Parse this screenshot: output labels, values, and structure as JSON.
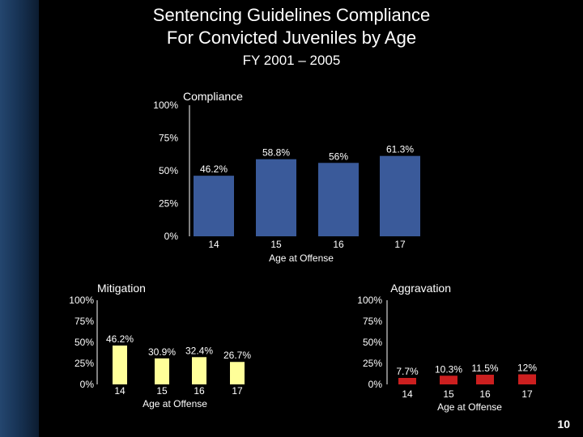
{
  "slide": {
    "title_line1": "Sentencing Guidelines Compliance",
    "title_line2": "For Convicted Juveniles by Age",
    "subtitle": "FY 2001 – 2005",
    "page_number": "10"
  },
  "colors": {
    "background": "#000000",
    "compliance_bar": "#3a5a9a",
    "mitigation_bar": "#ffff99",
    "aggravation_bar": "#cc1f1f",
    "side_bar": "#1c3a5e"
  },
  "chart_data": [
    {
      "id": "compliance",
      "type": "bar",
      "title": "Compliance",
      "xlabel": "Age at Offense",
      "ylabel": "",
      "categories": [
        "14",
        "15",
        "16",
        "17"
      ],
      "values": [
        46.2,
        58.8,
        56,
        61.3
      ],
      "value_labels": [
        "46.2%",
        "58.8%",
        "56%",
        "61.3%"
      ],
      "yticks": [
        "0%",
        "25%",
        "50%",
        "75%",
        "100%"
      ],
      "ylim": [
        0,
        100
      ],
      "grid": false,
      "color": "#3a5a9a"
    },
    {
      "id": "mitigation",
      "type": "bar",
      "title": "Mitigation",
      "xlabel": "Age at Offense",
      "ylabel": "",
      "categories": [
        "14",
        "15",
        "16",
        "17"
      ],
      "values": [
        46.2,
        30.9,
        32.4,
        26.7
      ],
      "value_labels": [
        "46.2%",
        "30.9%",
        "32.4%",
        "26.7%"
      ],
      "yticks": [
        "0%",
        "25%",
        "50%",
        "75%",
        "100%"
      ],
      "ylim": [
        0,
        100
      ],
      "grid": false,
      "color": "#ffff99"
    },
    {
      "id": "aggravation",
      "type": "bar",
      "title": "Aggravation",
      "xlabel": "Age at Offense",
      "ylabel": "",
      "categories": [
        "14",
        "15",
        "16",
        "17"
      ],
      "values": [
        7.7,
        10.3,
        11.5,
        12
      ],
      "value_labels": [
        "7.7%",
        "10.3%",
        "11.5%",
        "12%"
      ],
      "yticks": [
        "0%",
        "25%",
        "50%",
        "75%",
        "100%"
      ],
      "ylim": [
        0,
        100
      ],
      "grid": false,
      "color": "#cc1f1f"
    }
  ]
}
